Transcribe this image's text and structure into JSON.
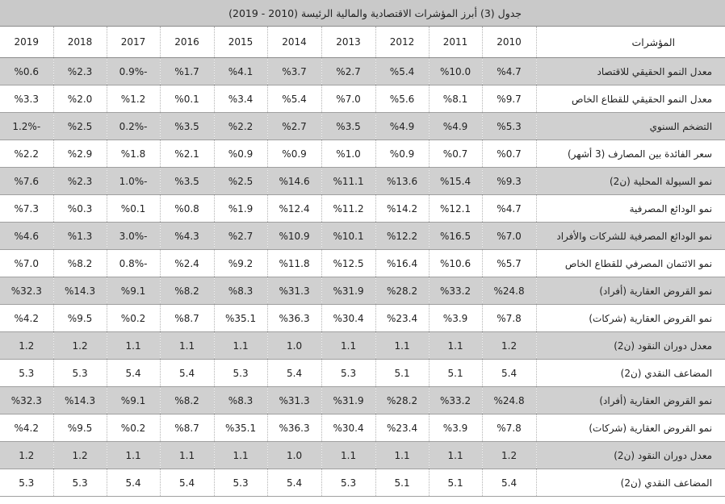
{
  "table": {
    "title": "جدول (3) أبرز المؤشرات الاقتصادية والمالية الرئيسة (2010 - 2019)",
    "label_header": "المؤشرات",
    "years": [
      "2010",
      "2011",
      "2012",
      "2013",
      "2014",
      "2015",
      "2016",
      "2017",
      "2018",
      "2019"
    ],
    "rows": [
      {
        "label": "معدل النمو الحقيقي للاقتصاد",
        "values": [
          "%4.7",
          "%10.0",
          "%5.4",
          "%2.7",
          "%3.7",
          "%4.1",
          "%1.7",
          "-0.9%",
          "%2.3",
          "%0.6"
        ]
      },
      {
        "label": "معدل النمو الحقيقي للقطاع الخاص",
        "values": [
          "%9.7",
          "%8.1",
          "%5.6",
          "%7.0",
          "%5.4",
          "%3.4",
          "%0.1",
          "%1.2",
          "%2.0",
          "%3.3"
        ]
      },
      {
        "label": "التضخم السنوي",
        "values": [
          "%5.3",
          "%4.9",
          "%4.9",
          "%3.5",
          "%2.7",
          "%2.2",
          "%3.5",
          "-0.2%",
          "%2.5",
          "-1.2%"
        ]
      },
      {
        "label": "سعر الفائدة بين المصارف (3 أشهر)",
        "values": [
          "%0.7",
          "%0.7",
          "%0.9",
          "%1.0",
          "%0.9",
          "%0.9",
          "%2.1",
          "%1.8",
          "%2.9",
          "%2.2"
        ]
      },
      {
        "label": "نمو السيولة المحلية (ن2)",
        "values": [
          "%9.3",
          "%15.4",
          "%13.6",
          "%11.1",
          "%14.6",
          "%2.5",
          "%3.5",
          "-1.0%",
          "%2.3",
          "%7.6"
        ]
      },
      {
        "label": "نمو الودائع المصرفية",
        "values": [
          "%4.7",
          "%12.1",
          "%14.2",
          "%11.2",
          "%12.4",
          "%1.9",
          "%0.8",
          "%0.1",
          "%0.3",
          "%7.3"
        ]
      },
      {
        "label": "نمو الودائع المصرفية للشركات والأفراد",
        "values": [
          "%7.0",
          "%16.5",
          "%12.2",
          "%10.1",
          "%10.9",
          "%2.7",
          "%4.3",
          "-3.0%",
          "%1.3",
          "%4.6"
        ]
      },
      {
        "label": "نمو الائتمان المصرفي للقطاع الخاص",
        "values": [
          "%5.7",
          "%10.6",
          "%16.4",
          "%12.5",
          "%11.8",
          "%9.2",
          "%2.4",
          "-0.8%",
          "%8.2",
          "%7.0"
        ]
      },
      {
        "label": "نمو القروض العقارية (أفراد)",
        "values": [
          "%24.8",
          "%33.2",
          "%28.2",
          "%31.9",
          "%31.3",
          "%8.3",
          "%8.2",
          "%9.1",
          "%14.3",
          "%32.3"
        ]
      },
      {
        "label": "نمو القروض العقارية (شركات)",
        "values": [
          "%7.8",
          "%3.9",
          "%23.4",
          "%30.4",
          "%36.3",
          "%35.1",
          "%8.7",
          "%0.2",
          "%9.5",
          "%4.2"
        ]
      },
      {
        "label": "معدل دوران النقود (ن2)",
        "values": [
          "1.2",
          "1.1",
          "1.1",
          "1.1",
          "1.0",
          "1.1",
          "1.1",
          "1.1",
          "1.2",
          "1.2"
        ]
      },
      {
        "label": "المضاعف النقدي (ن2)",
        "values": [
          "5.4",
          "5.1",
          "5.1",
          "5.3",
          "5.4",
          "5.3",
          "5.4",
          "5.4",
          "5.3",
          "5.3"
        ]
      },
      {
        "label": "نمو القروض العقارية (أفراد)",
        "values": [
          "%24.8",
          "%33.2",
          "%28.2",
          "%31.9",
          "%31.3",
          "%8.3",
          "%8.2",
          "%9.1",
          "%14.3",
          "%32.3"
        ]
      },
      {
        "label": "نمو القروض العقارية (شركات)",
        "values": [
          "%7.8",
          "%3.9",
          "%23.4",
          "%30.4",
          "%36.3",
          "%35.1",
          "%8.7",
          "%0.2",
          "%9.5",
          "%4.2"
        ]
      },
      {
        "label": "معدل دوران النقود (ن2)",
        "values": [
          "1.2",
          "1.1",
          "1.1",
          "1.1",
          "1.0",
          "1.1",
          "1.1",
          "1.1",
          "1.2",
          "1.2"
        ]
      },
      {
        "label": "المضاعف النقدي (ن2)",
        "values": [
          "5.4",
          "5.1",
          "5.1",
          "5.3",
          "5.4",
          "5.3",
          "5.4",
          "5.4",
          "5.3",
          "5.3"
        ]
      }
    ]
  }
}
